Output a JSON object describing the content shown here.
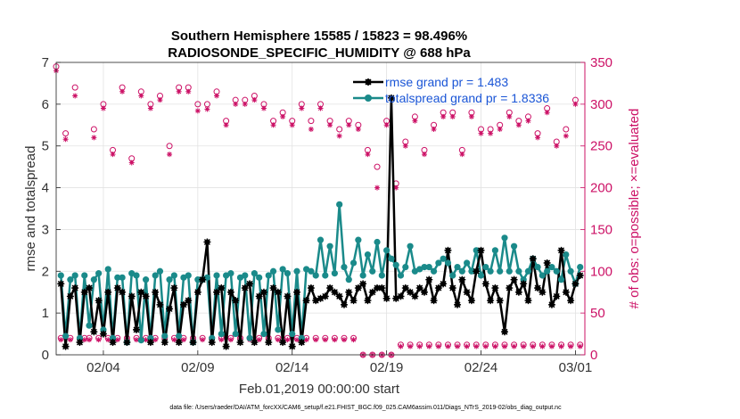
{
  "chart_data": {
    "type": "line",
    "title_line1": "Southern Hemisphere 15585 / 15823 = 98.496%",
    "title_line2": "RADIOSONDE_SPECIFIC_HUMIDITY @ 688 hPa",
    "xlabel": "Feb.01,2019 00:00:00 start",
    "ylabel": "rmse and totalspread",
    "y2label": "# of obs: o=possible; ×=evaluated",
    "footnote": "data file: /Users/raeder/DAI/ATM_forcXX/CAM6_setup/f.e21.FHIST_BGC.f09_025.CAM6assim.011/Diags_NTrS_2019-02/obs_diag_output.nc",
    "xlim": [
      1.0,
      29.0
    ],
    "ylim": [
      0,
      7
    ],
    "y2lim": [
      0,
      350
    ],
    "x_ticks": [
      3.5,
      8.5,
      13.5,
      18.5,
      23.5,
      28.5
    ],
    "x_tick_labels": [
      "02/04",
      "02/09",
      "02/14",
      "02/19",
      "02/24",
      "03/01"
    ],
    "y_ticks": [
      0,
      1,
      2,
      3,
      4,
      5,
      6,
      7
    ],
    "y_tick_labels": [
      "0",
      "1",
      "2",
      "3",
      "4",
      "5",
      "6",
      "7"
    ],
    "y2_ticks": [
      0,
      50,
      100,
      150,
      200,
      250,
      300,
      350
    ],
    "y2_tick_labels": [
      "0",
      "50",
      "100",
      "150",
      "200",
      "250",
      "300",
      "350"
    ],
    "x": [
      1.25,
      1.5,
      1.75,
      2.0,
      2.25,
      2.5,
      2.75,
      3.0,
      3.25,
      3.5,
      3.75,
      4.0,
      4.25,
      4.5,
      4.75,
      5.0,
      5.25,
      5.5,
      5.75,
      6.0,
      6.25,
      6.5,
      6.75,
      7.0,
      7.25,
      7.5,
      7.75,
      8.0,
      8.25,
      8.5,
      8.75,
      9.0,
      9.25,
      9.5,
      9.75,
      10.0,
      10.25,
      10.5,
      10.75,
      11.0,
      11.25,
      11.5,
      11.75,
      12.0,
      12.25,
      12.5,
      12.75,
      13.0,
      13.25,
      13.5,
      13.75,
      14.0,
      14.25,
      14.5,
      14.75,
      15.0,
      15.25,
      15.5,
      15.75,
      16.0,
      16.25,
      16.5,
      16.75,
      17.0,
      17.25,
      17.5,
      17.75,
      18.0,
      18.25,
      18.5,
      18.75,
      19.0,
      19.25,
      19.5,
      19.75,
      20.0,
      20.25,
      20.5,
      20.75,
      21.0,
      21.25,
      21.5,
      21.75,
      22.0,
      22.25,
      22.5,
      22.75,
      23.0,
      23.25,
      23.5,
      23.75,
      24.0,
      24.25,
      24.5,
      24.75,
      25.0,
      25.25,
      25.5,
      25.75,
      26.0,
      26.25,
      26.5,
      26.75,
      27.0,
      27.25,
      27.5,
      27.75,
      28.0,
      28.25,
      28.5,
      28.75
    ],
    "series": [
      {
        "name": "rmse grand pr = 1.483",
        "color": "#000000",
        "values": [
          1.7,
          0.2,
          1.4,
          1.6,
          0.3,
          1.5,
          1.6,
          0.55,
          1.3,
          0.5,
          1.5,
          0.3,
          1.6,
          1.5,
          0.3,
          1.4,
          0.6,
          1.5,
          1.4,
          0.3,
          1.5,
          1.2,
          0.3,
          1.1,
          1.6,
          0.3,
          1.2,
          1.3,
          0.3,
          1.5,
          1.8,
          2.7,
          0.3,
          1.5,
          1.6,
          0.2,
          1.5,
          1.3,
          0.3,
          1.6,
          1.7,
          0.3,
          1.4,
          1.5,
          0.3,
          1.6,
          1.5,
          0.3,
          1.4,
          0.2,
          1.5,
          0.3,
          1.3,
          1.6,
          1.3,
          1.35,
          1.4,
          1.6,
          1.5,
          1.4,
          1.2,
          1.5,
          1.3,
          1.6,
          1.7,
          1.3,
          1.5,
          1.6,
          1.6,
          1.35,
          6.15,
          1.35,
          1.4,
          1.6,
          1.5,
          1.4,
          1.6,
          1.5,
          1.8,
          1.3,
          1.6,
          1.7,
          2.5,
          1.6,
          1.2,
          1.8,
          1.5,
          1.3,
          2.0,
          2.5,
          1.7,
          1.3,
          1.6,
          1.3,
          0.55,
          1.6,
          1.8,
          1.5,
          1.7,
          1.3,
          2.3,
          1.6,
          1.5,
          2.2,
          1.2,
          1.4,
          2.5,
          1.5,
          1.3,
          1.7,
          1.9
        ]
      },
      {
        "name": "totalspread grand pr = 1.8336",
        "color": "#1a8a8a",
        "values": [
          1.9,
          0.45,
          1.8,
          1.9,
          0.4,
          1.9,
          0.7,
          1.8,
          1.95,
          0.6,
          2.05,
          0.4,
          1.85,
          1.85,
          0.3,
          1.95,
          1.9,
          0.35,
          1.8,
          0.4,
          1.9,
          2.0,
          0.45,
          1.8,
          1.9,
          0.45,
          1.85,
          1.9,
          0.3,
          1.8,
          1.8,
          1.85,
          0.4,
          1.9,
          0.5,
          1.9,
          1.95,
          0.5,
          1.85,
          1.9,
          0.4,
          1.95,
          1.85,
          0.5,
          1.9,
          2.0,
          0.6,
          2.05,
          1.95,
          0.5,
          2.0,
          0.4,
          2.05,
          2.0,
          1.9,
          2.75,
          1.9,
          2.6,
          1.95,
          3.6,
          2.1,
          1.8,
          2.2,
          2.75,
          1.9,
          2.4,
          2.0,
          2.7,
          1.9,
          2.5,
          2.3,
          2.15,
          1.9,
          2.1,
          2.6,
          2.0,
          2.05,
          2.1,
          2.1,
          2.0,
          2.2,
          2.3,
          2.2,
          1.9,
          2.1,
          2.0,
          2.2,
          2.0,
          2.5,
          1.9,
          2.1,
          2.0,
          2.5,
          2.0,
          2.8,
          2.0,
          2.6,
          2.0,
          1.8,
          2.0,
          2.3,
          2.1,
          1.9,
          2.0,
          2.1,
          2.0,
          1.8,
          2.4,
          2.0,
          1.7,
          2.1
        ]
      }
    ],
    "obs_possible_x": [
      1.0,
      1.25,
      1.5,
      1.75,
      2.0,
      2.25,
      2.5,
      2.75,
      3.0,
      3.25,
      3.5,
      3.75,
      4.0,
      4.25,
      4.5,
      4.75,
      5.0,
      5.25,
      5.5,
      5.75,
      6.0,
      6.25,
      6.5,
      6.75,
      7.0,
      7.25,
      7.5,
      7.75,
      8.0,
      8.25,
      8.5,
      8.75,
      9.0,
      9.25,
      9.5,
      9.75,
      10.0,
      10.25,
      10.5,
      10.75,
      11.0,
      11.25,
      11.5,
      11.75,
      12.0,
      12.25,
      12.5,
      12.75,
      13.0,
      13.25,
      13.5,
      13.75,
      14.0,
      14.25,
      14.5,
      14.75,
      15.0,
      15.25,
      15.5,
      15.75,
      16.0,
      16.25,
      16.5,
      16.75,
      17.0,
      17.25,
      17.5,
      17.75,
      18.0,
      18.25,
      18.5,
      18.75,
      19.0,
      19.25,
      19.5,
      19.75,
      20.0,
      20.25,
      20.5,
      20.75,
      21.0,
      21.25,
      21.5,
      21.75,
      22.0,
      22.25,
      22.5,
      22.75,
      23.0,
      23.25,
      23.5,
      23.75,
      24.0,
      24.25,
      24.5,
      24.75,
      25.0,
      25.25,
      25.5,
      25.75,
      26.0,
      26.25,
      26.5,
      26.75,
      27.0,
      27.25,
      27.5,
      27.75,
      28.0,
      28.25,
      28.5,
      28.75
    ],
    "obs_possible": [
      345,
      20,
      265,
      20,
      320,
      20,
      20,
      20,
      270,
      20,
      300,
      20,
      245,
      20,
      320,
      20,
      235,
      20,
      315,
      20,
      300,
      20,
      310,
      20,
      250,
      20,
      320,
      20,
      320,
      20,
      300,
      20,
      300,
      20,
      315,
      20,
      280,
      20,
      305,
      20,
      305,
      20,
      310,
      20,
      300,
      20,
      280,
      20,
      290,
      20,
      280,
      20,
      300,
      20,
      280,
      20,
      300,
      20,
      280,
      20,
      270,
      20,
      280,
      20,
      275,
      0,
      245,
      0,
      225,
      0,
      280,
      0,
      205,
      12,
      255,
      12,
      285,
      12,
      245,
      12,
      275,
      12,
      290,
      12,
      290,
      12,
      245,
      12,
      290,
      12,
      270,
      12,
      270,
      12,
      275,
      12,
      290,
      12,
      280,
      12,
      285,
      12,
      265,
      12,
      295,
      12,
      255,
      12,
      270,
      12,
      305,
      12
    ],
    "obs_evaluated": [
      340,
      18,
      258,
      18,
      310,
      18,
      18,
      18,
      260,
      18,
      295,
      18,
      240,
      18,
      315,
      18,
      230,
      18,
      310,
      18,
      295,
      18,
      305,
      18,
      240,
      18,
      315,
      18,
      315,
      18,
      292,
      18,
      294,
      18,
      310,
      18,
      275,
      18,
      300,
      18,
      300,
      18,
      305,
      18,
      295,
      18,
      275,
      18,
      285,
      18,
      275,
      18,
      295,
      18,
      270,
      18,
      295,
      18,
      275,
      18,
      262,
      18,
      275,
      18,
      270,
      0,
      240,
      0,
      200,
      0,
      275,
      0,
      200,
      10,
      250,
      10,
      280,
      10,
      240,
      10,
      270,
      10,
      285,
      10,
      285,
      10,
      240,
      10,
      285,
      10,
      265,
      10,
      265,
      10,
      270,
      10,
      285,
      10,
      275,
      10,
      280,
      10,
      260,
      10,
      290,
      10,
      250,
      10,
      262,
      10,
      300,
      10
    ]
  }
}
